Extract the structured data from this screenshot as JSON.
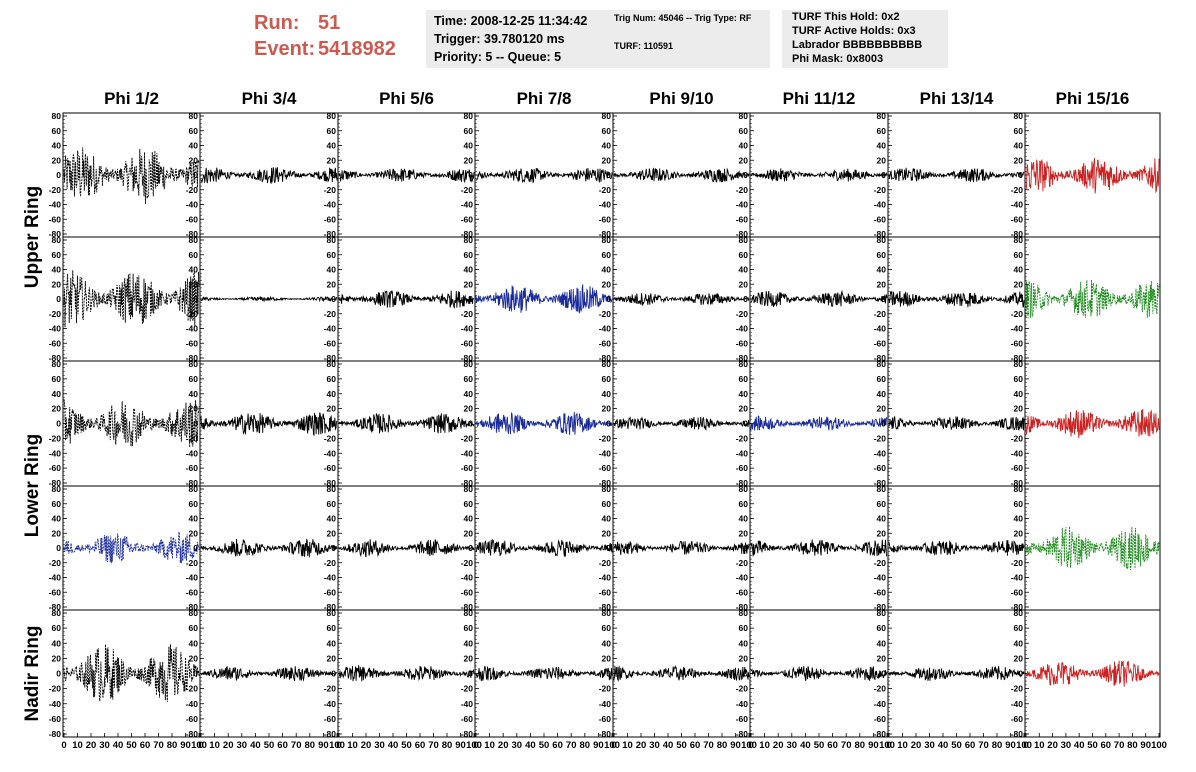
{
  "header": {
    "run_label": "Run:",
    "run_value": "51",
    "event_label": "Event:",
    "event_value": "5418982",
    "info1": [
      "Time: 2008-12-25 11:34:42",
      "Trigger: 39.780120 ms",
      "Priority: 5 -- Queue: 5"
    ],
    "info2_line1": "Trig Num: 45046 -- Trig Type: RF",
    "info2_line2": "TURF: 110591",
    "info3": [
      "TURF This Hold: 0x2",
      "TURF Active Holds: 0x3",
      "Labrador BBBBBBBBBB",
      "Phi Mask: 0x8003"
    ]
  },
  "chart_data": {
    "type": "line",
    "columns": [
      "Phi 1/2",
      "Phi 3/4",
      "Phi 5/6",
      "Phi 7/8",
      "Phi 9/10",
      "Phi 11/12",
      "Phi 13/14",
      "Phi 15/16"
    ],
    "row_labels": [
      {
        "text": "Upper Ring",
        "rows": [
          0,
          1
        ]
      },
      {
        "text": "Lower Ring",
        "rows": [
          2,
          3
        ]
      },
      {
        "text": "Nadir Ring",
        "rows": [
          4
        ]
      }
    ],
    "xlim": [
      0,
      100
    ],
    "ylim": [
      -80,
      80
    ],
    "y_ticks": [
      80,
      60,
      40,
      20,
      0,
      -20,
      -40,
      -60,
      -80
    ],
    "x_ticks": [
      0,
      10,
      20,
      30,
      40,
      50,
      60,
      70,
      80,
      90,
      100
    ],
    "colors": {
      "black": "#000000",
      "red": "#cc2222",
      "blue": "#1a2b9a",
      "green": "#1a8a1a"
    },
    "panels": [
      [
        {
          "color": "black",
          "amp": 40,
          "dash": true
        },
        {
          "color": "black",
          "amp": 12
        },
        {
          "color": "black",
          "amp": 10
        },
        {
          "color": "black",
          "amp": 11
        },
        {
          "color": "black",
          "amp": 10
        },
        {
          "color": "black",
          "amp": 9
        },
        {
          "color": "black",
          "amp": 10
        },
        {
          "color": "red",
          "amp": 26
        }
      ],
      [
        {
          "color": "black",
          "amp": 40,
          "dash": true
        },
        {
          "color": "black",
          "amp": 3
        },
        {
          "color": "black",
          "amp": 12
        },
        {
          "color": "blue",
          "amp": 20
        },
        {
          "color": "black",
          "amp": 9
        },
        {
          "color": "black",
          "amp": 11
        },
        {
          "color": "black",
          "amp": 12
        },
        {
          "color": "green",
          "amp": 28,
          "dash": true
        }
      ],
      [
        {
          "color": "black",
          "amp": 34,
          "dash": true
        },
        {
          "color": "black",
          "amp": 16
        },
        {
          "color": "black",
          "amp": 14
        },
        {
          "color": "blue",
          "amp": 16
        },
        {
          "color": "black",
          "amp": 9
        },
        {
          "color": "blue",
          "amp": 10
        },
        {
          "color": "black",
          "amp": 10
        },
        {
          "color": "red",
          "amp": 20
        }
      ],
      [
        {
          "color": "blue",
          "amp": 22,
          "dash": true
        },
        {
          "color": "black",
          "amp": 13
        },
        {
          "color": "black",
          "amp": 12
        },
        {
          "color": "black",
          "amp": 12
        },
        {
          "color": "black",
          "amp": 10
        },
        {
          "color": "black",
          "amp": 12
        },
        {
          "color": "black",
          "amp": 11
        },
        {
          "color": "green",
          "amp": 30,
          "dash": true
        }
      ],
      [
        {
          "color": "black",
          "amp": 40,
          "dash": true
        },
        {
          "color": "black",
          "amp": 10
        },
        {
          "color": "black",
          "amp": 11
        },
        {
          "color": "black",
          "amp": 10
        },
        {
          "color": "black",
          "amp": 10
        },
        {
          "color": "black",
          "amp": 10
        },
        {
          "color": "black",
          "amp": 10
        },
        {
          "color": "red",
          "amp": 18
        }
      ]
    ]
  }
}
